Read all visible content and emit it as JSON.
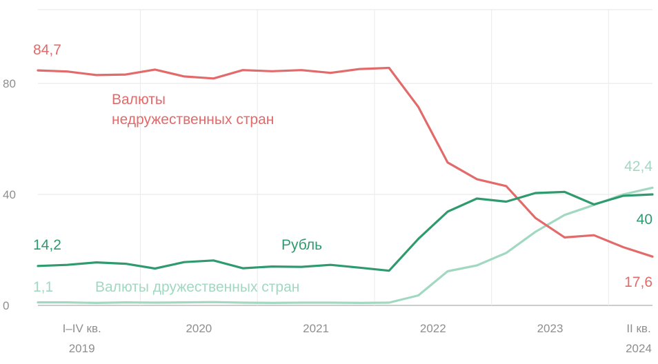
{
  "chart_data": {
    "type": "line",
    "ylim": [
      0,
      100
    ],
    "yticks": [
      "0",
      "40",
      "80"
    ],
    "ytick_values": [
      0,
      40,
      80
    ],
    "x": [
      "2019Q1",
      "2019Q2",
      "2019Q3",
      "2019Q4",
      "2020Q1",
      "2020Q2",
      "2020Q3",
      "2020Q4",
      "2021Q1",
      "2021Q2",
      "2021Q3",
      "2021Q4",
      "2022Q1",
      "2022Q2",
      "2022Q3",
      "2022Q4",
      "2023Q1",
      "2023Q2",
      "2023Q3",
      "2023Q4",
      "2024Q1",
      "2024Q2"
    ],
    "x_groups": [
      {
        "line1": "I–IV кв.",
        "line2": "2019"
      },
      {
        "line1": "2020",
        "line2": ""
      },
      {
        "line1": "2021",
        "line2": ""
      },
      {
        "line1": "2022",
        "line2": ""
      },
      {
        "line1": "2023",
        "line2": ""
      },
      {
        "line1": "II кв.",
        "line2": "2024"
      }
    ],
    "grid": true,
    "series": [
      {
        "name": "Валюты недружественных стран",
        "name_lines": [
          "Валюты",
          "недружественных стран"
        ],
        "color": "#e26a6a",
        "values": [
          84.7,
          84.3,
          83.0,
          83.2,
          85.0,
          82.5,
          81.8,
          84.8,
          84.4,
          84.8,
          83.8,
          85.2,
          85.6,
          71.5,
          51.5,
          45.5,
          43.0,
          31.5,
          24.5,
          25.3,
          21.0,
          17.6
        ],
        "start_label": "84,7",
        "end_label": "17,6"
      },
      {
        "name": "Рубль",
        "name_lines": [
          "Рубль"
        ],
        "color": "#2f9a6d",
        "values": [
          14.2,
          14.6,
          15.5,
          15.0,
          13.3,
          15.6,
          16.2,
          13.4,
          14.0,
          13.9,
          14.6,
          13.6,
          12.5,
          24.0,
          33.8,
          38.5,
          37.4,
          40.5,
          40.9,
          36.4,
          39.5,
          40.0
        ],
        "start_label": "14,2",
        "end_label": "40"
      },
      {
        "name": "Валюты дружественных стран",
        "name_lines": [
          "Валюты дружественных стран"
        ],
        "color": "#a2d8c1",
        "values": [
          1.1,
          1.1,
          0.9,
          1.1,
          1.0,
          1.1,
          1.2,
          1.0,
          0.9,
          1.0,
          1.0,
          0.9,
          1.0,
          3.6,
          12.3,
          14.4,
          18.9,
          26.5,
          32.6,
          36.2,
          40.0,
          42.4
        ],
        "start_label": "1,1",
        "end_label": "42,4"
      }
    ]
  }
}
